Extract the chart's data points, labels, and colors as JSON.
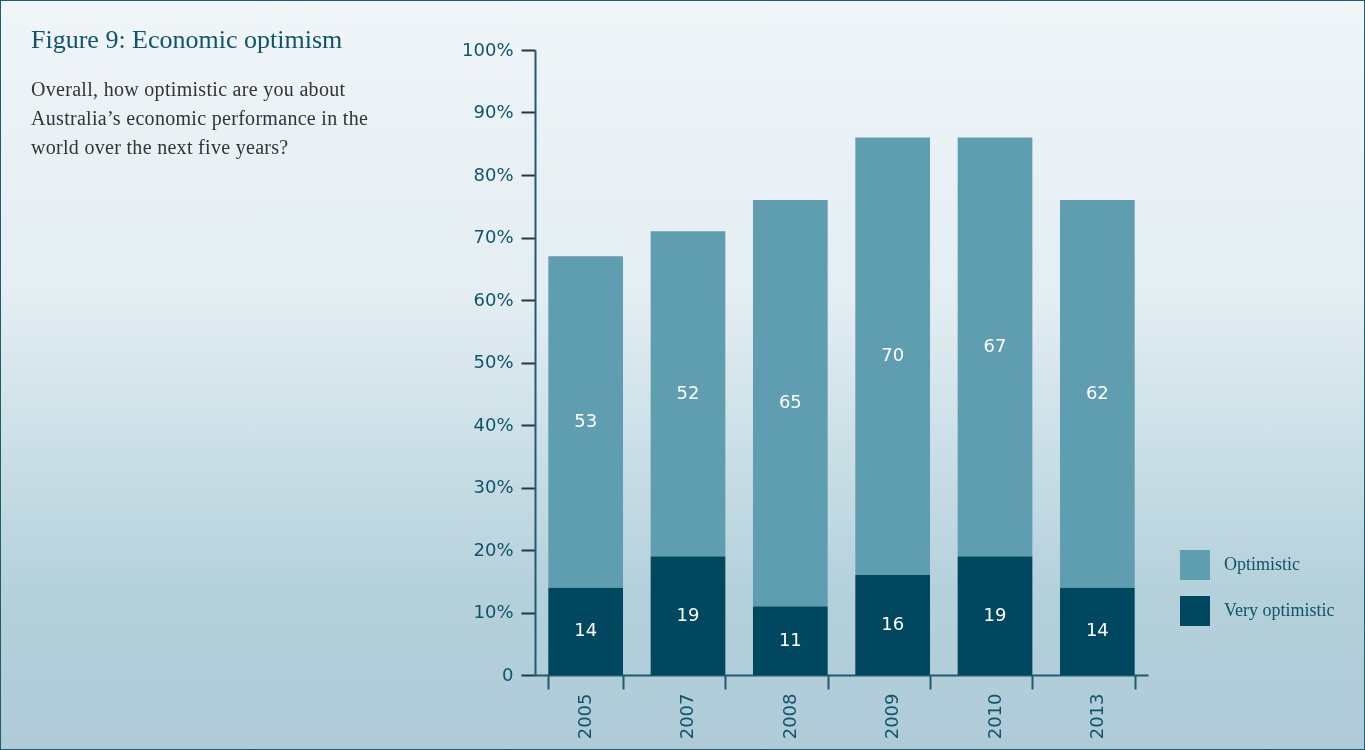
{
  "chart_data": {
    "type": "bar",
    "title": "Figure 9: Economic optimism",
    "subtitle": "Overall, how optimistic are you about Australia’s economic performance in the world over the next five years?",
    "categories": [
      "2005",
      "2007",
      "2008",
      "2009",
      "2010",
      "2013"
    ],
    "series": [
      {
        "name": "Very optimistic",
        "color": "#00485f",
        "values": [
          14,
          19,
          11,
          16,
          19,
          14
        ]
      },
      {
        "name": "Optimistic",
        "color": "#5f9db0",
        "values": [
          53,
          52,
          65,
          70,
          67,
          62
        ]
      }
    ],
    "stacked": true,
    "data_labels": true,
    "legend": "bottom right",
    "grid": false,
    "ylim": [
      0,
      100
    ],
    "yticks": [
      {
        "value": 0,
        "label": "0"
      },
      {
        "value": 10,
        "label": "10%"
      },
      {
        "value": 20,
        "label": "20%"
      },
      {
        "value": 30,
        "label": "30%"
      },
      {
        "value": 40,
        "label": "40%"
      },
      {
        "value": 50,
        "label": "50%"
      },
      {
        "value": 60,
        "label": "60%"
      },
      {
        "value": 70,
        "label": "70%"
      },
      {
        "value": 80,
        "label": "80%"
      },
      {
        "value": 90,
        "label": "90%"
      },
      {
        "value": 100,
        "label": "100%"
      }
    ]
  }
}
